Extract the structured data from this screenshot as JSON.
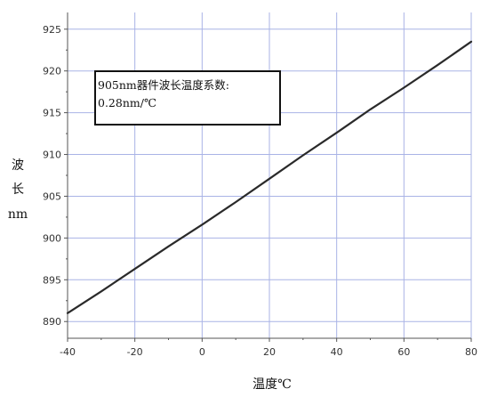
{
  "chart_data": {
    "type": "line",
    "title": "",
    "xlabel": "温度℃",
    "ylabel": [
      "波",
      "长",
      "nm"
    ],
    "xlim": [
      -40,
      80
    ],
    "ylim": [
      888,
      927
    ],
    "x_ticks": [
      -40,
      -20,
      0,
      20,
      40,
      60,
      80
    ],
    "y_ticks": [
      890,
      895,
      900,
      905,
      910,
      915,
      920,
      925
    ],
    "grid": true,
    "annotation": {
      "line1": "905nm器件波长温度系数:",
      "line2": "0.28nm/℃"
    },
    "series": [
      {
        "x": [
          -40,
          -30,
          -20,
          -10,
          0,
          10,
          20,
          30,
          40,
          50,
          60,
          70,
          80
        ],
        "y": [
          891.0,
          893.6,
          896.3,
          899.0,
          901.6,
          904.3,
          907.1,
          909.9,
          912.6,
          915.4,
          918.0,
          920.7,
          923.5
        ]
      }
    ]
  },
  "colors": {
    "grid": "#a9b3e6",
    "line": "#2a2a2a",
    "axis": "#555555"
  }
}
